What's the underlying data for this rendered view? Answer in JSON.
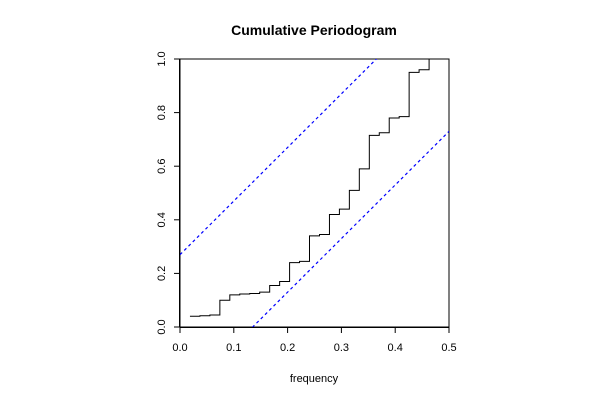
{
  "chart_data": {
    "type": "line",
    "title": "Cumulative Periodogram",
    "xlabel": "frequency",
    "ylabel": "",
    "xlim": [
      0,
      0.5
    ],
    "ylim": [
      0,
      1
    ],
    "x_ticks": [
      "0.0",
      "0.1",
      "0.2",
      "0.3",
      "0.4",
      "0.5"
    ],
    "y_ticks": [
      "0.0",
      "0.2",
      "0.4",
      "0.6",
      "0.8",
      "1.0"
    ],
    "grid": false,
    "series": [
      {
        "style": "step",
        "color": "#000000",
        "x": [
          0.0185,
          0.037,
          0.0556,
          0.0741,
          0.0926,
          0.1111,
          0.1296,
          0.1481,
          0.1667,
          0.1852,
          0.2037,
          0.2222,
          0.2407,
          0.2593,
          0.2778,
          0.2963,
          0.3148,
          0.3333,
          0.3519,
          0.3704,
          0.3889,
          0.4074,
          0.4259,
          0.4444,
          0.463,
          0.4815,
          0.5
        ],
        "y": [
          0.04,
          0.042,
          0.045,
          0.1,
          0.12,
          0.123,
          0.125,
          0.13,
          0.155,
          0.17,
          0.24,
          0.245,
          0.34,
          0.345,
          0.42,
          0.44,
          0.51,
          0.59,
          0.715,
          0.725,
          0.78,
          0.785,
          0.95,
          0.96,
          1.0,
          1.0,
          1.0
        ]
      },
      {
        "style": "dashed",
        "color": "#0000ff",
        "x": [
          0.0,
          0.5
        ],
        "y": [
          0.27,
          1.27
        ]
      },
      {
        "style": "dashed",
        "color": "#0000ff",
        "x": [
          0.0,
          0.5
        ],
        "y": [
          -0.27,
          0.73
        ]
      }
    ]
  }
}
